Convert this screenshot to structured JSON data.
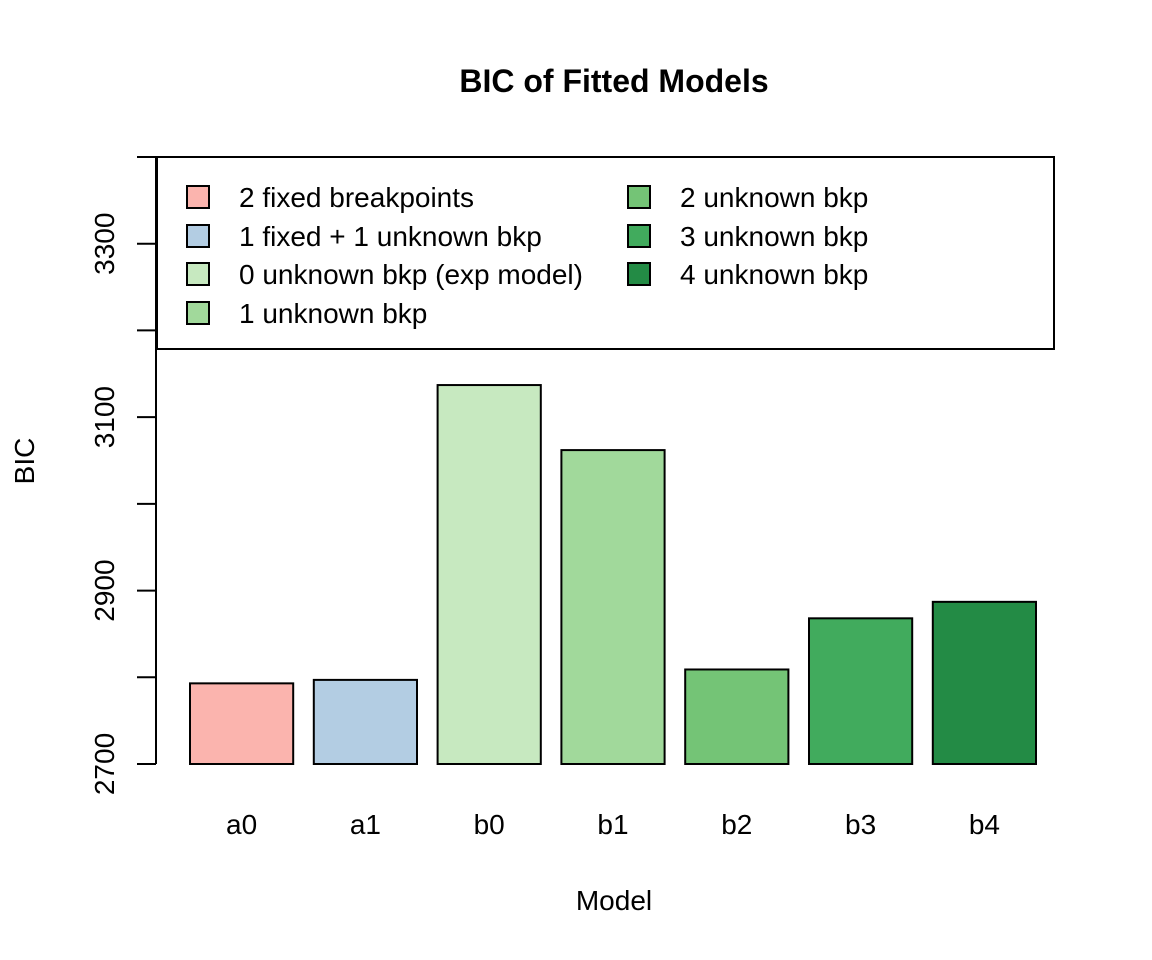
{
  "chart_data": {
    "type": "bar",
    "title": "BIC of Fitted Models",
    "xlabel": "Model",
    "ylabel": "BIC",
    "categories": [
      "a0",
      "a1",
      "b0",
      "b1",
      "b2",
      "b3",
      "b4"
    ],
    "values": [
      2793,
      2797,
      3137,
      3062,
      2809,
      2868,
      2887
    ],
    "colors": [
      "#FBB4AE",
      "#B3CDE3",
      "#C7E9C0",
      "#A1D99B",
      "#74C476",
      "#41AB5D",
      "#238B45"
    ],
    "ylim": [
      2700,
      3400
    ],
    "yticks": [
      2700,
      2800,
      2900,
      3000,
      3100,
      3200,
      3300,
      3400
    ],
    "ytick_labels": [
      "2700",
      "",
      "2900",
      "",
      "3100",
      "",
      "3300",
      ""
    ],
    "grid": false,
    "legend": {
      "position": "top",
      "columns": 2,
      "entries": [
        {
          "label": "2 fixed breakpoints",
          "color": "#FBB4AE"
        },
        {
          "label": "1 fixed + 1 unknown bkp",
          "color": "#B3CDE3"
        },
        {
          "label": "0 unknown bkp (exp model)",
          "color": "#C7E9C0"
        },
        {
          "label": "1 unknown bkp",
          "color": "#A1D99B"
        },
        {
          "label": "2 unknown bkp",
          "color": "#74C476"
        },
        {
          "label": "3 unknown bkp",
          "color": "#41AB5D"
        },
        {
          "label": "4 unknown bkp",
          "color": "#238B45"
        }
      ]
    }
  }
}
